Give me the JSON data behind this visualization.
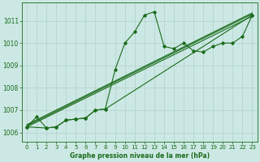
{
  "title": "Graphe pression niveau de la mer (hPa)",
  "bg_color": "#cce8e4",
  "grid_color": "#b0d0cc",
  "line_color": "#1a6b1a",
  "x_ticks": [
    0,
    1,
    2,
    3,
    4,
    5,
    6,
    7,
    8,
    9,
    10,
    11,
    12,
    13,
    14,
    15,
    16,
    17,
    18,
    19,
    20,
    21,
    22,
    23
  ],
  "ylim": [
    1005.6,
    1011.8
  ],
  "yticks": [
    1006,
    1007,
    1008,
    1009,
    1010,
    1011
  ],
  "curve1_x": [
    0,
    1,
    2,
    3,
    4,
    5,
    6,
    7,
    8,
    9,
    10,
    11,
    12,
    13,
    14,
    15,
    16,
    17,
    18,
    19,
    20,
    21,
    22,
    23
  ],
  "curve1_y": [
    1006.25,
    1006.7,
    1006.2,
    1006.25,
    1006.55,
    1006.6,
    1006.65,
    1007.0,
    1007.05,
    1008.8,
    1010.0,
    1010.5,
    1011.25,
    1011.4,
    1009.85,
    1009.75,
    1010.0,
    1009.65,
    1009.6,
    1009.85,
    1010.0,
    1010.0,
    1010.3,
    1011.25
  ],
  "curve2_x": [
    0,
    2,
    3,
    4,
    5,
    6,
    7,
    8,
    23
  ],
  "curve2_y": [
    1006.25,
    1006.2,
    1006.25,
    1006.55,
    1006.6,
    1006.65,
    1007.0,
    1007.05,
    1011.25
  ],
  "regline1_x": [
    0,
    23
  ],
  "regline1_y": [
    1006.25,
    1011.2
  ],
  "regline2_x": [
    0,
    23
  ],
  "regline2_y": [
    1006.3,
    1011.3
  ],
  "regline3_x": [
    0,
    23
  ],
  "regline3_y": [
    1006.35,
    1011.35
  ],
  "xlabel_fontsize": 5.5,
  "ylabel_fontsize": 5.5,
  "tick_fontsize": 5.0,
  "marker_size": 1.8,
  "linewidth": 0.8
}
